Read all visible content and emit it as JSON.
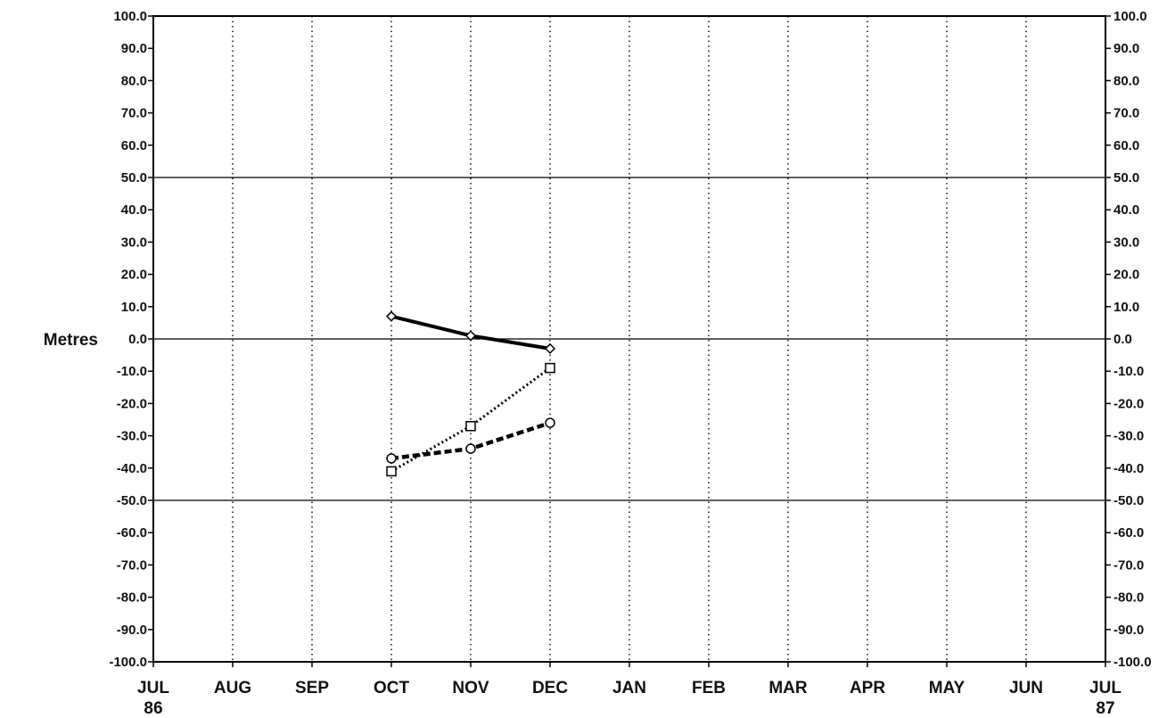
{
  "chart_data": {
    "type": "line",
    "ylabel": "Metres",
    "ylim": [
      -100,
      100
    ],
    "yticks": [
      100,
      90,
      80,
      70,
      60,
      50,
      40,
      30,
      20,
      10,
      0,
      -10,
      -20,
      -30,
      -40,
      -50,
      -60,
      -70,
      -80,
      -90,
      -100
    ],
    "ytick_labels": [
      "100.0",
      "90.0",
      "80.0",
      "70.0",
      "60.0",
      "50.0",
      "40.0",
      "30.0",
      "20.0",
      "10.0",
      "0.0",
      "-10.0",
      "-20.0",
      "-30.0",
      "-40.0",
      "-50.0",
      "-60.0",
      "-70.0",
      "-80.0",
      "-90.0",
      "-100.0"
    ],
    "reference_lines": [
      50,
      0,
      -50
    ],
    "x_labels": [
      {
        "month": "JUL",
        "year": "86"
      },
      {
        "month": "AUG",
        "year": ""
      },
      {
        "month": "SEP",
        "year": ""
      },
      {
        "month": "OCT",
        "year": ""
      },
      {
        "month": "NOV",
        "year": ""
      },
      {
        "month": "DEC",
        "year": ""
      },
      {
        "month": "JAN",
        "year": ""
      },
      {
        "month": "FEB",
        "year": ""
      },
      {
        "month": "MAR",
        "year": ""
      },
      {
        "month": "APR",
        "year": ""
      },
      {
        "month": "MAY",
        "year": ""
      },
      {
        "month": "JUN",
        "year": ""
      },
      {
        "month": "JUL",
        "year": "87"
      }
    ],
    "grid": "vertical dotted",
    "series": [
      {
        "style": "solid",
        "marker": "diamond",
        "color": "#000000",
        "x": [
          "OCT",
          "NOV",
          "DEC"
        ],
        "values": [
          7,
          1,
          -3
        ]
      },
      {
        "style": "dotted",
        "marker": "square",
        "color": "#000000",
        "x": [
          "OCT",
          "NOV",
          "DEC"
        ],
        "values": [
          -41,
          -27,
          -9
        ]
      },
      {
        "style": "dashed",
        "marker": "circle",
        "color": "#000000",
        "x": [
          "OCT",
          "NOV",
          "DEC"
        ],
        "values": [
          -37,
          -34,
          -26
        ]
      }
    ]
  }
}
